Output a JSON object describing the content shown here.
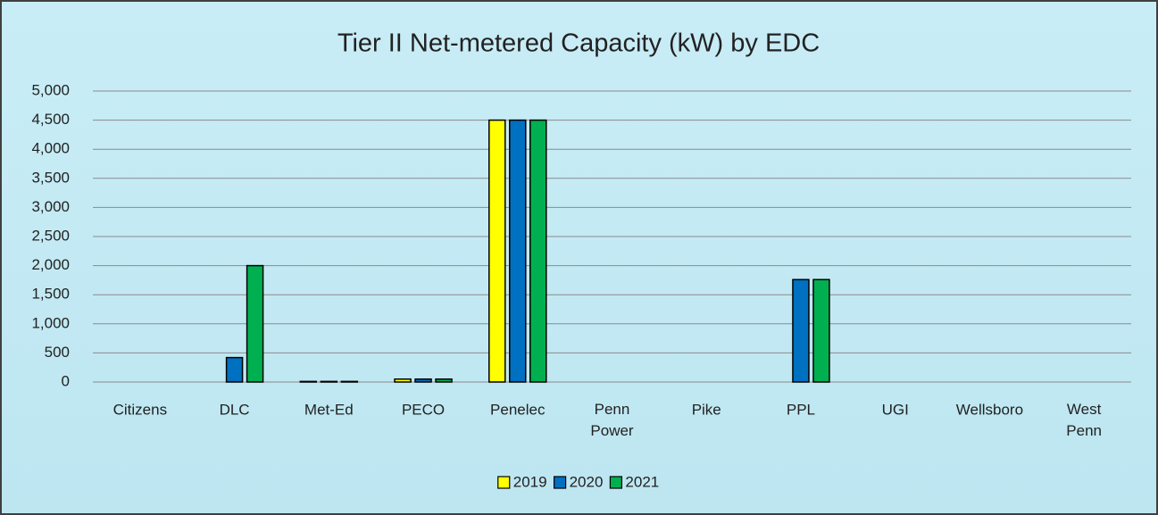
{
  "chart_data": {
    "type": "bar",
    "title": "Tier II Net-metered Capacity (kW) by EDC",
    "categories": [
      "Citizens",
      "DLC",
      "Met-Ed",
      "PECO",
      "Penelec",
      "Penn Power",
      "Pike",
      "PPL",
      "UGI",
      "Wellsboro",
      "West Penn"
    ],
    "series": [
      {
        "name": "2019",
        "color": "#ffff00",
        "values": [
          0,
          0,
          10,
          50,
          4500,
          0,
          0,
          0,
          0,
          0,
          0
        ]
      },
      {
        "name": "2020",
        "color": "#0070c0",
        "values": [
          0,
          420,
          10,
          50,
          4500,
          0,
          0,
          1760,
          0,
          0,
          0
        ]
      },
      {
        "name": "2021",
        "color": "#00b050",
        "values": [
          0,
          2000,
          10,
          50,
          4500,
          0,
          0,
          1760,
          0,
          0,
          0
        ]
      }
    ],
    "ylim": [
      0,
      5000
    ],
    "yticks": [
      0,
      500,
      {
        "value": 1000,
        "label": "1,000"
      },
      {
        "value": 1500,
        "label": "1,500"
      },
      {
        "value": 2000,
        "label": "2,000"
      },
      {
        "value": 2500,
        "label": "2,500"
      },
      {
        "value": 3000,
        "label": "3,000"
      },
      {
        "value": 3500,
        "label": "3,500"
      },
      {
        "value": 4000,
        "label": "4,000"
      },
      {
        "value": 4500,
        "label": "4,500"
      },
      {
        "value": 5000,
        "label": "5,000"
      }
    ],
    "grid": true,
    "legend": "bottom"
  }
}
